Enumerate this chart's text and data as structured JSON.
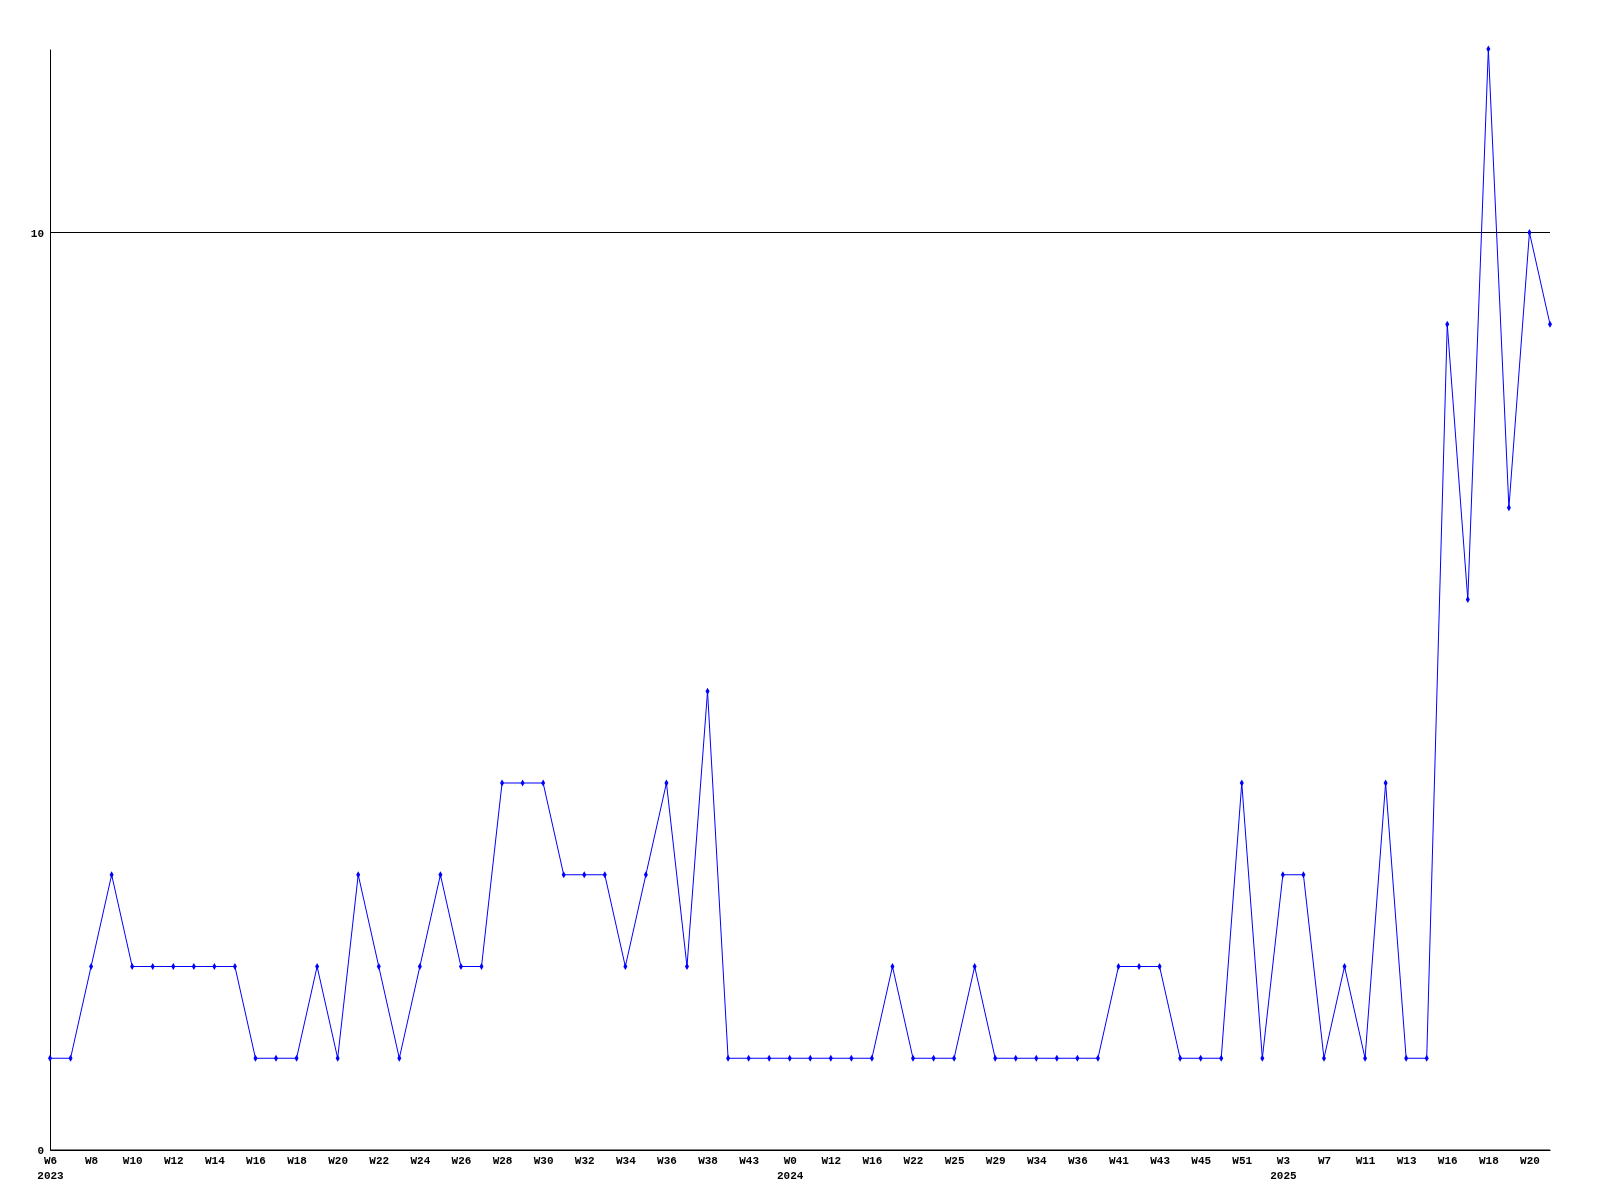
{
  "chart_data": {
    "type": "line",
    "categories": [
      "W6\n2023",
      null,
      "W8",
      null,
      "W10",
      null,
      "W12",
      null,
      "W14",
      null,
      "W16",
      null,
      "W18",
      null,
      "W20",
      null,
      "W22",
      null,
      "W24",
      null,
      "W26",
      null,
      "W28",
      null,
      "W30",
      null,
      "W32",
      null,
      "W34",
      null,
      "W36",
      null,
      "W38",
      null,
      "W43",
      null,
      "W0\n2024",
      null,
      "W12",
      null,
      "W16",
      null,
      "W22",
      null,
      "W25",
      null,
      "W29",
      null,
      "W34",
      null,
      "W36",
      null,
      "W41",
      null,
      "W43",
      null,
      "W45",
      null,
      "W51",
      null,
      "W3\n2025",
      null,
      "W7",
      null,
      "W11",
      null,
      "W13",
      null,
      "W16",
      null,
      "W18",
      null,
      "W20",
      null
    ],
    "series": [
      {
        "color": "#0000ff",
        "values": [
          1,
          1,
          2,
          3,
          2,
          2,
          2,
          2,
          2,
          2,
          1,
          1,
          1,
          2,
          1,
          3,
          2,
          1,
          2,
          3,
          2,
          2,
          4,
          4,
          4,
          3,
          3,
          3,
          2,
          3,
          4,
          2,
          5,
          1,
          1,
          1,
          1,
          1,
          1,
          1,
          1,
          2,
          1,
          1,
          1,
          2,
          1,
          1,
          1,
          1,
          1,
          1,
          2,
          2,
          2,
          1,
          1,
          1,
          4,
          1,
          3,
          3,
          1,
          2,
          1,
          4,
          1,
          1,
          9,
          6,
          12,
          7,
          10,
          9
        ]
      }
    ],
    "ylim": [
      0,
      12
    ],
    "yticks": [
      0,
      10
    ],
    "grid": "y",
    "marker": "diamond",
    "line_style": "solid"
  }
}
